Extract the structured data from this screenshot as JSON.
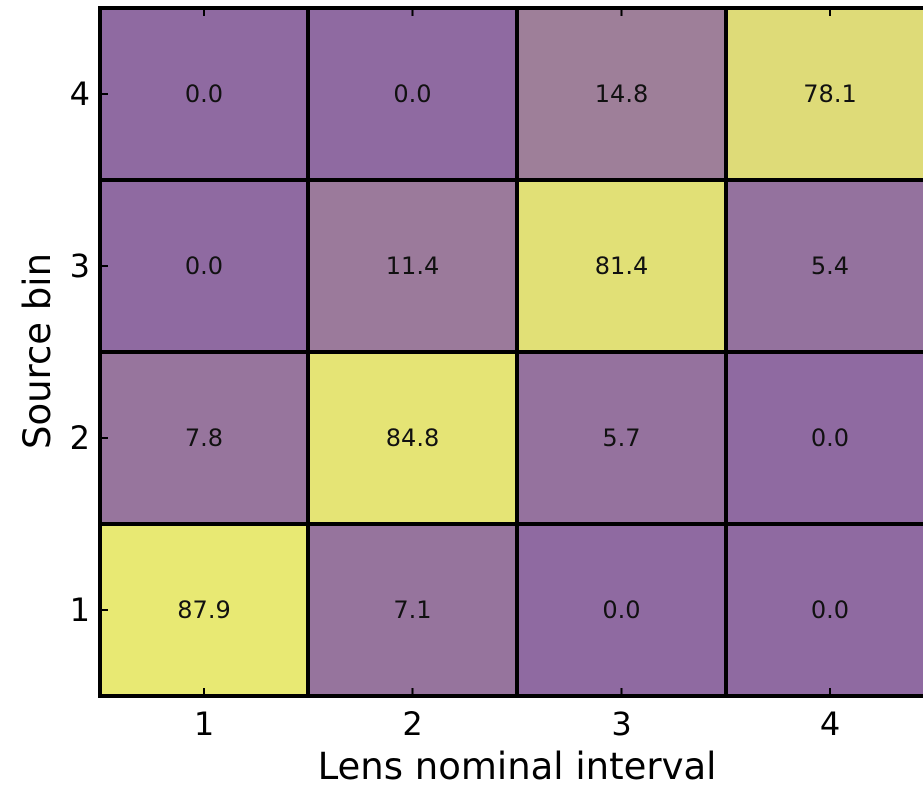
{
  "chart_data": {
    "type": "heatmap",
    "xlabel": "Lens nominal interval",
    "ylabel": "Source bin",
    "x_categories": [
      "1",
      "2",
      "3",
      "4"
    ],
    "y_categories": [
      "1",
      "2",
      "3",
      "4"
    ],
    "values": [
      [
        87.9,
        7.1,
        0.0,
        0.0
      ],
      [
        7.8,
        84.8,
        5.7,
        0.0
      ],
      [
        0.0,
        11.4,
        81.4,
        5.4
      ],
      [
        0.0,
        0.0,
        14.8,
        78.1
      ]
    ],
    "value_labels": [
      [
        "87.9",
        "7.1",
        "0.0",
        "0.0"
      ],
      [
        "7.8",
        "84.8",
        "5.7",
        "0.0"
      ],
      [
        "0.0",
        "11.4",
        "81.4",
        "5.4"
      ],
      [
        "0.0",
        "0.0",
        "14.8",
        "78.1"
      ]
    ],
    "colors": {
      "low": "#8f6aa1",
      "high": "#eaec72",
      "border": "#000000",
      "text": "#111111"
    }
  }
}
